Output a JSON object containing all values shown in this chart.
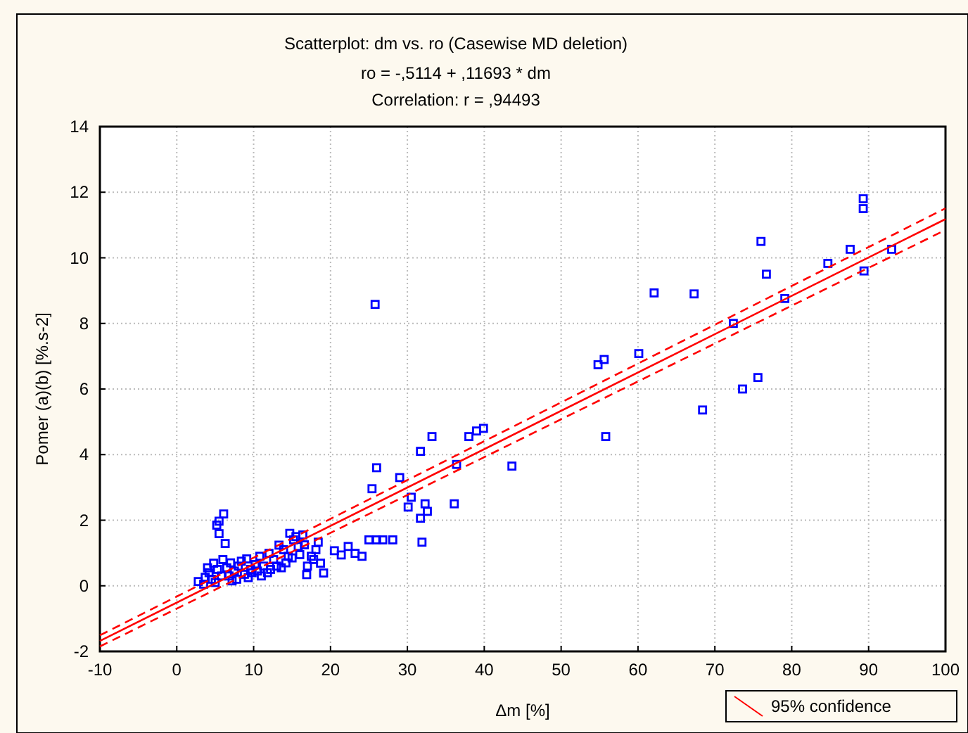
{
  "chart_data": {
    "type": "scatter",
    "title": "Scatterplot: dm       vs. ro       (Casewise MD deletion)",
    "subtitle": "ro       = -,5114 + ,11693 * dm",
    "annotations": [
      "Correlation: r = ,94493"
    ],
    "xlabel": "Δm [%]",
    "ylabel": "Pomer (a)(b) [%.s-2]",
    "xlim": [
      -10,
      100
    ],
    "ylim": [
      -2,
      14
    ],
    "xticks": [
      -10,
      0,
      10,
      20,
      30,
      40,
      50,
      60,
      70,
      80,
      90,
      100
    ],
    "yticks": [
      -2,
      0,
      2,
      4,
      6,
      8,
      10,
      12,
      14
    ],
    "grid": true,
    "legend": "bottom right",
    "series": [
      {
        "color": "#0000ff",
        "marker": "square",
        "x": [
          2.8,
          3.7,
          4.2,
          4.8,
          5.3,
          5.8,
          6.1,
          5.5,
          5.2,
          5.5,
          6.3,
          6.5,
          7.0,
          7.5,
          8.0,
          8.4,
          9.1,
          9.6,
          10.2,
          10.8,
          11.3,
          12.0,
          12.6,
          13.3,
          13.9,
          14.7,
          15.2,
          15.8,
          16.4,
          16.9,
          17.5,
          18.1,
          18.4,
          18.7,
          19.1,
          3.5,
          4.5,
          5.0,
          6.8,
          7.8,
          8.8,
          9.8,
          11.0,
          12.2,
          13.0,
          14.2,
          15.0,
          16.0,
          17.0,
          4.0,
          6.0,
          7.2,
          9.3,
          10.5,
          11.8,
          13.6,
          14.5,
          15.5,
          16.6,
          17.8,
          20.5,
          21.4,
          22.3,
          23.2,
          24.1,
          25.0,
          26.0,
          26.8,
          28.1,
          31.9,
          31.7,
          32.6,
          30.1,
          29.0,
          25.4,
          26.0,
          32.3,
          30.5,
          25.8,
          36.1,
          36.4,
          33.2,
          31.7,
          38.0,
          39.0,
          39.9,
          43.6,
          54.8,
          55.6,
          55.8,
          60.1,
          62.1,
          67.3,
          68.4,
          72.4,
          73.6,
          75.6,
          76.0,
          76.7,
          79.1,
          84.7,
          87.6,
          89.3,
          89.3,
          89.4,
          93.0
        ],
        "values": [
          0.13,
          0.26,
          0.4,
          0.69,
          0.5,
          0.3,
          2.19,
          1.97,
          1.85,
          1.59,
          1.29,
          0.55,
          0.7,
          0.45,
          0.6,
          0.75,
          0.82,
          0.5,
          0.65,
          0.9,
          0.6,
          0.99,
          0.8,
          1.24,
          1.1,
          1.6,
          1.4,
          1.2,
          1.55,
          0.34,
          0.9,
          1.1,
          1.33,
          0.69,
          0.39,
          0.05,
          0.2,
          0.1,
          0.3,
          0.2,
          0.35,
          0.4,
          0.3,
          0.5,
          0.6,
          0.7,
          0.85,
          0.95,
          0.6,
          0.55,
          0.8,
          0.15,
          0.25,
          0.45,
          0.4,
          0.55,
          0.9,
          1.5,
          1.25,
          0.8,
          1.07,
          0.94,
          1.2,
          0.99,
          0.9,
          1.4,
          1.4,
          1.4,
          1.4,
          1.33,
          2.06,
          2.27,
          2.4,
          3.3,
          2.96,
          3.6,
          2.5,
          2.7,
          8.58,
          2.5,
          3.7,
          4.55,
          4.1,
          4.55,
          4.72,
          4.8,
          3.65,
          6.74,
          6.9,
          4.55,
          7.08,
          8.93,
          8.9,
          5.36,
          8.0,
          6.0,
          6.35,
          10.5,
          9.5,
          8.76,
          9.83,
          10.26,
          11.8,
          11.5,
          9.6,
          10.26
        ]
      },
      {
        "type": "line",
        "name": "95% confidence",
        "color": "#ff0000",
        "line_style": "solid",
        "x": [
          -10,
          100
        ],
        "values": [
          -1.68,
          11.18
        ]
      },
      {
        "type": "line",
        "color": "#ff0000",
        "line_style": "dashed",
        "x": [
          -10,
          100
        ],
        "values": [
          -1.85,
          10.85
        ]
      },
      {
        "type": "line",
        "color": "#ff0000",
        "line_style": "dashed",
        "x": [
          -10,
          100
        ],
        "values": [
          -1.51,
          11.51
        ]
      }
    ]
  }
}
